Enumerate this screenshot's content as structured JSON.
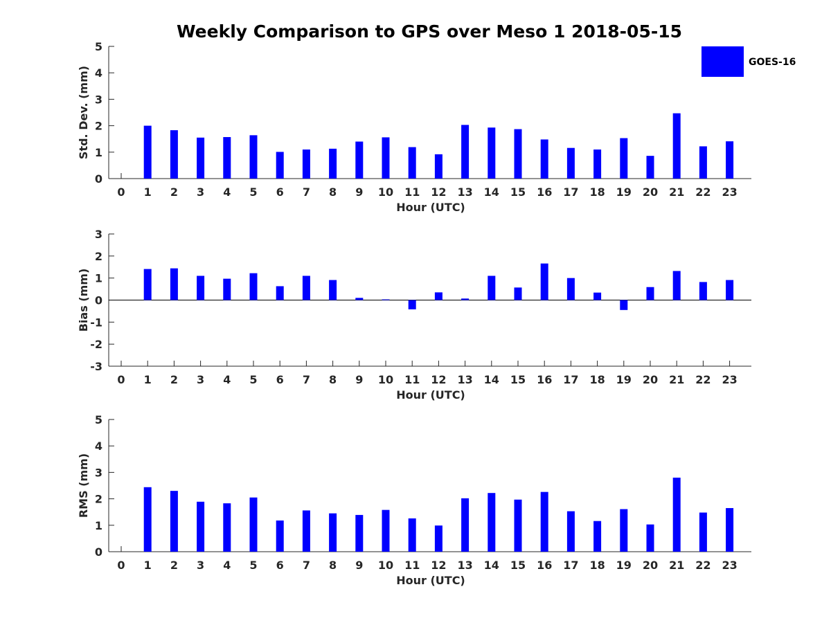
{
  "title": "Weekly Comparison to GPS over Meso 1 2018-05-15",
  "colors": {
    "bar": "#0000ff",
    "axis": "#262626"
  },
  "legend": {
    "label": "GOES-16",
    "placement": "top-right"
  },
  "chart_data": [
    {
      "type": "bar",
      "name": "std_dev",
      "xlabel": "Hour (UTC)",
      "ylabel": "Std. Dev. (mm)",
      "ylim": [
        0,
        5
      ],
      "yticks": [
        0,
        1,
        2,
        3,
        4,
        5
      ],
      "categories": [
        "0",
        "1",
        "2",
        "3",
        "4",
        "5",
        "6",
        "7",
        "8",
        "9",
        "10",
        "11",
        "12",
        "13",
        "14",
        "15",
        "16",
        "17",
        "18",
        "19",
        "20",
        "21",
        "22",
        "23"
      ],
      "series": [
        {
          "name": "GOES-16",
          "values": [
            0,
            2.0,
            1.83,
            1.55,
            1.57,
            1.64,
            1.01,
            1.1,
            1.13,
            1.4,
            1.56,
            1.19,
            0.92,
            2.03,
            1.93,
            1.87,
            1.48,
            1.16,
            1.1,
            1.53,
            0.86,
            2.47,
            1.22,
            1.41
          ]
        }
      ]
    },
    {
      "type": "bar",
      "name": "bias",
      "xlabel": "Hour (UTC)",
      "ylabel": "Bias (mm)",
      "ylim": [
        -3,
        3
      ],
      "yticks": [
        -3,
        -2,
        -1,
        0,
        1,
        2,
        3
      ],
      "categories": [
        "0",
        "1",
        "2",
        "3",
        "4",
        "5",
        "6",
        "7",
        "8",
        "9",
        "10",
        "11",
        "12",
        "13",
        "14",
        "15",
        "16",
        "17",
        "18",
        "19",
        "20",
        "21",
        "22",
        "23"
      ],
      "series": [
        {
          "name": "GOES-16",
          "values": [
            0,
            1.41,
            1.44,
            1.1,
            0.97,
            1.22,
            0.63,
            1.1,
            0.91,
            0.1,
            0.03,
            -0.42,
            0.35,
            0.07,
            1.1,
            0.57,
            1.66,
            1.0,
            0.34,
            -0.45,
            0.59,
            1.32,
            0.82,
            0.91
          ]
        }
      ]
    },
    {
      "type": "bar",
      "name": "rms",
      "xlabel": "Hour (UTC)",
      "ylabel": "RMS (mm)",
      "ylim": [
        0,
        5
      ],
      "yticks": [
        0,
        1,
        2,
        3,
        4,
        5
      ],
      "categories": [
        "0",
        "1",
        "2",
        "3",
        "4",
        "5",
        "6",
        "7",
        "8",
        "9",
        "10",
        "11",
        "12",
        "13",
        "14",
        "15",
        "16",
        "17",
        "18",
        "19",
        "20",
        "21",
        "22",
        "23"
      ],
      "series": [
        {
          "name": "GOES-16",
          "values": [
            0,
            2.44,
            2.3,
            1.89,
            1.83,
            2.05,
            1.18,
            1.56,
            1.45,
            1.39,
            1.58,
            1.26,
            0.99,
            2.02,
            2.22,
            1.97,
            2.26,
            1.53,
            1.16,
            1.61,
            1.03,
            2.8,
            1.48,
            1.65
          ]
        }
      ]
    }
  ]
}
